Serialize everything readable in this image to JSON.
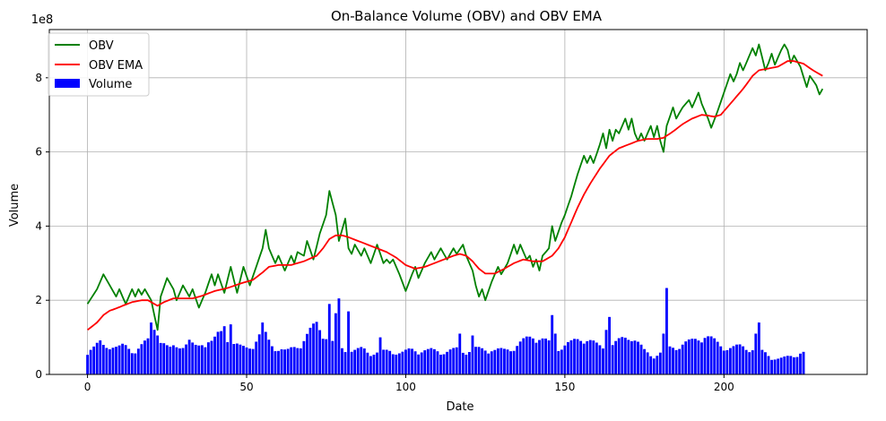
{
  "chart_data": {
    "type": "line",
    "title": "On-Balance Volume (OBV) and OBV EMA",
    "xlabel": "Date",
    "ylabel": "Volume",
    "y_offset_label": "1e8",
    "xlim": [
      -12,
      245
    ],
    "ylim": [
      0,
      9.3
    ],
    "xticks": [
      0,
      50,
      100,
      150,
      200
    ],
    "yticks": [
      0,
      2,
      4,
      6,
      8
    ],
    "grid": true,
    "legend_position": "top-left",
    "colors": {
      "obv": "#008000",
      "ema": "#ff0000",
      "volume": "#0000ff"
    },
    "legend": [
      "OBV",
      "OBV EMA",
      "Volume"
    ],
    "obv_keypoints": [
      [
        0,
        1.9
      ],
      [
        3,
        2.3
      ],
      [
        5,
        2.7
      ],
      [
        7,
        2.4
      ],
      [
        9,
        2.1
      ],
      [
        10,
        2.3
      ],
      [
        12,
        1.9
      ],
      [
        14,
        2.3
      ],
      [
        15,
        2.1
      ],
      [
        16,
        2.3
      ],
      [
        17,
        2.15
      ],
      [
        18,
        2.3
      ],
      [
        20,
        2.0
      ],
      [
        21,
        1.6
      ],
      [
        22,
        1.2
      ],
      [
        23,
        2.1
      ],
      [
        25,
        2.6
      ],
      [
        27,
        2.3
      ],
      [
        28,
        2.0
      ],
      [
        30,
        2.4
      ],
      [
        32,
        2.1
      ],
      [
        33,
        2.3
      ],
      [
        35,
        1.8
      ],
      [
        37,
        2.2
      ],
      [
        39,
        2.7
      ],
      [
        40,
        2.4
      ],
      [
        41,
        2.7
      ],
      [
        43,
        2.2
      ],
      [
        45,
        2.9
      ],
      [
        47,
        2.2
      ],
      [
        49,
        2.9
      ],
      [
        51,
        2.4
      ],
      [
        53,
        2.9
      ],
      [
        55,
        3.4
      ],
      [
        56,
        3.9
      ],
      [
        57,
        3.4
      ],
      [
        59,
        3.0
      ],
      [
        60,
        3.2
      ],
      [
        62,
        2.8
      ],
      [
        64,
        3.2
      ],
      [
        65,
        3.0
      ],
      [
        66,
        3.3
      ],
      [
        68,
        3.2
      ],
      [
        69,
        3.6
      ],
      [
        71,
        3.1
      ],
      [
        73,
        3.8
      ],
      [
        75,
        4.3
      ],
      [
        76,
        4.95
      ],
      [
        78,
        4.3
      ],
      [
        79,
        3.6
      ],
      [
        81,
        4.2
      ],
      [
        82,
        3.4
      ],
      [
        83,
        3.25
      ],
      [
        84,
        3.5
      ],
      [
        86,
        3.2
      ],
      [
        87,
        3.4
      ],
      [
        89,
        3.0
      ],
      [
        91,
        3.5
      ],
      [
        93,
        3.0
      ],
      [
        94,
        3.1
      ],
      [
        95,
        3.0
      ],
      [
        96,
        3.1
      ],
      [
        98,
        2.7
      ],
      [
        100,
        2.25
      ],
      [
        102,
        2.7
      ],
      [
        103,
        2.9
      ],
      [
        104,
        2.6
      ],
      [
        106,
        3.0
      ],
      [
        108,
        3.3
      ],
      [
        109,
        3.1
      ],
      [
        111,
        3.4
      ],
      [
        113,
        3.1
      ],
      [
        115,
        3.4
      ],
      [
        116,
        3.25
      ],
      [
        118,
        3.5
      ],
      [
        119,
        3.2
      ],
      [
        121,
        2.8
      ],
      [
        122,
        2.4
      ],
      [
        123,
        2.1
      ],
      [
        124,
        2.3
      ],
      [
        125,
        2.0
      ],
      [
        127,
        2.5
      ],
      [
        129,
        2.9
      ],
      [
        130,
        2.7
      ],
      [
        132,
        3.0
      ],
      [
        134,
        3.5
      ],
      [
        135,
        3.25
      ],
      [
        136,
        3.5
      ],
      [
        138,
        3.1
      ],
      [
        139,
        3.2
      ],
      [
        140,
        2.9
      ],
      [
        141,
        3.1
      ],
      [
        142,
        2.8
      ],
      [
        143,
        3.2
      ],
      [
        145,
        3.4
      ],
      [
        146,
        4.0
      ],
      [
        147,
        3.6
      ],
      [
        149,
        4.1
      ],
      [
        150,
        4.3
      ],
      [
        152,
        4.8
      ],
      [
        154,
        5.4
      ],
      [
        156,
        5.9
      ],
      [
        157,
        5.7
      ],
      [
        158,
        5.9
      ],
      [
        159,
        5.7
      ],
      [
        161,
        6.2
      ],
      [
        162,
        6.5
      ],
      [
        163,
        6.1
      ],
      [
        164,
        6.6
      ],
      [
        165,
        6.3
      ],
      [
        166,
        6.6
      ],
      [
        167,
        6.5
      ],
      [
        169,
        6.9
      ],
      [
        170,
        6.6
      ],
      [
        171,
        6.9
      ],
      [
        172,
        6.5
      ],
      [
        173,
        6.3
      ],
      [
        174,
        6.5
      ],
      [
        175,
        6.3
      ],
      [
        177,
        6.7
      ],
      [
        178,
        6.4
      ],
      [
        179,
        6.7
      ],
      [
        180,
        6.3
      ],
      [
        181,
        6.0
      ],
      [
        182,
        6.7
      ],
      [
        184,
        7.2
      ],
      [
        185,
        6.9
      ],
      [
        187,
        7.2
      ],
      [
        189,
        7.4
      ],
      [
        190,
        7.2
      ],
      [
        192,
        7.6
      ],
      [
        193,
        7.3
      ],
      [
        195,
        6.9
      ],
      [
        196,
        6.65
      ],
      [
        198,
        7.1
      ],
      [
        200,
        7.6
      ],
      [
        202,
        8.1
      ],
      [
        203,
        7.9
      ],
      [
        204,
        8.1
      ],
      [
        205,
        8.4
      ],
      [
        206,
        8.2
      ],
      [
        208,
        8.6
      ],
      [
        209,
        8.8
      ],
      [
        210,
        8.6
      ],
      [
        211,
        8.9
      ],
      [
        213,
        8.2
      ],
      [
        214,
        8.4
      ],
      [
        215,
        8.65
      ],
      [
        216,
        8.35
      ],
      [
        218,
        8.75
      ],
      [
        219,
        8.9
      ],
      [
        220,
        8.75
      ],
      [
        221,
        8.4
      ],
      [
        222,
        8.6
      ],
      [
        224,
        8.3
      ],
      [
        226,
        7.75
      ],
      [
        227,
        8.05
      ],
      [
        229,
        7.8
      ],
      [
        230,
        7.55
      ],
      [
        231,
        7.7
      ]
    ],
    "ema_keypoints": [
      [
        0,
        1.2
      ],
      [
        3,
        1.4
      ],
      [
        5,
        1.6
      ],
      [
        7,
        1.72
      ],
      [
        9,
        1.78
      ],
      [
        11,
        1.85
      ],
      [
        14,
        1.95
      ],
      [
        17,
        2.0
      ],
      [
        19,
        2.0
      ],
      [
        21,
        1.9
      ],
      [
        22,
        1.85
      ],
      [
        24,
        1.95
      ],
      [
        27,
        2.05
      ],
      [
        30,
        2.05
      ],
      [
        33,
        2.05
      ],
      [
        36,
        2.12
      ],
      [
        40,
        2.25
      ],
      [
        44,
        2.33
      ],
      [
        48,
        2.45
      ],
      [
        52,
        2.55
      ],
      [
        55,
        2.75
      ],
      [
        57,
        2.9
      ],
      [
        60,
        2.95
      ],
      [
        64,
        2.95
      ],
      [
        68,
        3.05
      ],
      [
        72,
        3.2
      ],
      [
        74,
        3.4
      ],
      [
        76,
        3.65
      ],
      [
        78,
        3.75
      ],
      [
        80,
        3.75
      ],
      [
        82,
        3.7
      ],
      [
        85,
        3.6
      ],
      [
        88,
        3.5
      ],
      [
        91,
        3.4
      ],
      [
        94,
        3.3
      ],
      [
        97,
        3.15
      ],
      [
        100,
        2.95
      ],
      [
        103,
        2.85
      ],
      [
        106,
        2.9
      ],
      [
        109,
        3.0
      ],
      [
        112,
        3.1
      ],
      [
        115,
        3.2
      ],
      [
        117,
        3.25
      ],
      [
        119,
        3.2
      ],
      [
        121,
        3.05
      ],
      [
        123,
        2.85
      ],
      [
        125,
        2.72
      ],
      [
        128,
        2.72
      ],
      [
        131,
        2.85
      ],
      [
        134,
        3.0
      ],
      [
        137,
        3.1
      ],
      [
        140,
        3.05
      ],
      [
        143,
        3.05
      ],
      [
        146,
        3.2
      ],
      [
        148,
        3.4
      ],
      [
        150,
        3.7
      ],
      [
        152,
        4.1
      ],
      [
        154,
        4.5
      ],
      [
        156,
        4.85
      ],
      [
        158,
        5.15
      ],
      [
        161,
        5.55
      ],
      [
        164,
        5.9
      ],
      [
        167,
        6.1
      ],
      [
        170,
        6.2
      ],
      [
        173,
        6.3
      ],
      [
        176,
        6.35
      ],
      [
        179,
        6.35
      ],
      [
        181,
        6.38
      ],
      [
        184,
        6.55
      ],
      [
        187,
        6.75
      ],
      [
        190,
        6.9
      ],
      [
        193,
        7.0
      ],
      [
        195,
        6.98
      ],
      [
        197,
        6.95
      ],
      [
        199,
        7.0
      ],
      [
        201,
        7.2
      ],
      [
        203,
        7.4
      ],
      [
        206,
        7.7
      ],
      [
        209,
        8.05
      ],
      [
        211,
        8.2
      ],
      [
        214,
        8.25
      ],
      [
        217,
        8.3
      ],
      [
        220,
        8.45
      ],
      [
        222,
        8.45
      ],
      [
        225,
        8.38
      ],
      [
        228,
        8.2
      ],
      [
        231,
        8.05
      ]
    ],
    "volume_base": [
      0.62,
      0.68,
      0.7,
      0.75,
      0.8,
      0.72,
      0.7,
      0.75,
      0.78,
      0.72,
      0.7,
      0.72,
      0.7,
      0.65,
      0.6,
      0.65,
      0.7,
      0.75,
      0.8,
      0.85,
      1.0,
      1.2,
      1.1,
      0.9,
      0.8,
      0.7,
      0.65,
      0.7,
      0.7,
      0.75,
      0.8,
      0.8,
      0.85,
      0.75,
      0.7,
      0.72,
      0.8,
      0.85,
      0.9,
      0.85,
      0.9,
      1.0,
      1.05,
      1.0,
      0.95,
      0.85,
      0.8,
      0.75,
      0.7,
      0.68,
      0.68,
      0.72,
      0.8,
      0.9,
      1.0,
      1.1,
      1.0,
      0.85,
      0.75,
      0.7,
      0.68,
      0.65,
      0.6,
      0.6,
      0.65,
      0.7,
      0.75,
      0.8,
      0.9,
      1.0,
      1.1,
      1.2,
      1.3,
      1.2,
      1.1,
      1.0,
      0.9,
      0.8,
      0.75,
      0.7,
      0.68,
      0.65,
      0.63,
      0.6,
      0.6,
      0.62,
      0.65,
      0.65,
      0.6,
      0.58,
      0.55,
      0.55,
      0.55,
      0.58,
      0.6,
      0.62,
      0.6,
      0.58,
      0.55,
      0.55,
      0.58,
      0.62,
      0.65,
      0.65,
      0.62,
      0.6,
      0.6,
      0.6,
      0.62,
      0.62,
      0.62,
      0.6,
      0.58,
      0.58,
      0.6,
      0.62,
      0.65,
      0.65,
      0.62,
      0.6,
      0.6,
      0.62,
      0.65,
      0.65,
      0.65,
      0.65,
      0.65,
      0.65,
      0.62,
      0.62,
      0.62,
      0.62,
      0.65,
      0.68,
      0.7,
      0.75,
      0.8,
      0.85,
      0.9,
      0.95,
      1.0,
      1.0,
      0.95,
      0.9,
      0.85,
      0.8,
      0.75,
      0.72,
      0.7,
      0.72,
      0.75,
      0.78,
      0.8,
      0.85,
      0.9,
      0.95,
      0.95,
      0.9,
      0.85,
      0.8,
      0.75,
      0.72,
      0.7,
      0.7,
      0.72,
      0.75,
      0.8,
      0.85,
      0.9,
      0.95,
      1.0,
      1.0,
      0.9,
      0.8,
      0.7,
      0.6,
      0.55,
      0.5,
      0.5,
      0.52,
      0.55,
      0.6,
      0.65,
      0.68,
      0.7,
      0.72,
      0.75,
      0.78,
      0.8,
      0.82,
      0.85,
      0.9,
      0.95,
      1.0,
      1.0,
      0.95,
      0.9,
      0.85,
      0.8,
      0.75,
      0.72,
      0.7,
      0.68,
      0.68,
      0.7,
      0.72,
      0.72,
      0.7,
      0.68,
      0.65,
      0.62,
      0.6,
      0.58,
      0.55,
      0.5,
      0.45,
      0.42,
      0.4,
      0.4,
      0.42,
      0.45,
      0.48,
      0.5,
      0.52,
      0.55,
      0.55
    ],
    "volume_spikes": {
      "20": 1.4,
      "22": 1.05,
      "43": 1.3,
      "45": 1.35,
      "55": 1.4,
      "76": 1.9,
      "78": 1.65,
      "79": 2.05,
      "82": 1.7,
      "92": 1.0,
      "117": 1.1,
      "121": 1.05,
      "146": 1.6,
      "147": 1.1,
      "163": 1.2,
      "164": 1.55,
      "181": 1.1,
      "182": 2.33,
      "210": 1.1,
      "211": 1.4
    }
  }
}
